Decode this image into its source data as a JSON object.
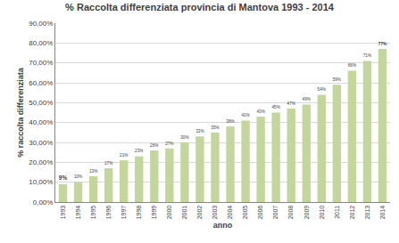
{
  "chart_data": {
    "type": "bar",
    "title": "% Raccolta differenziata provincia di Mantova 1993 - 2014",
    "x_label": "anno",
    "y_label": "% raccolta differenziata",
    "categories": [
      "1993",
      "1994",
      "1995",
      "1996",
      "1997",
      "1998",
      "1999",
      "2000",
      "2001",
      "2002",
      "2003",
      "2004",
      "2005",
      "2006",
      "2007",
      "2008",
      "2009",
      "2010",
      "2011",
      "2012",
      "2013",
      "2014"
    ],
    "values": [
      9,
      10,
      13,
      17,
      21,
      23,
      26,
      27,
      30,
      33,
      35,
      38,
      41,
      43,
      45,
      47,
      49,
      54,
      59,
      66,
      71,
      77
    ],
    "value_labels": [
      "9%",
      "10%",
      "13%",
      "17%",
      "21%",
      "23%",
      "26%",
      "27%",
      "30%",
      "33%",
      "35%",
      "38%",
      "41%",
      "43%",
      "45%",
      "47%",
      "49%",
      "54%",
      "59%",
      "66%",
      "71%",
      "77%"
    ],
    "color": "#c3d69b",
    "ylim": [
      0,
      90
    ],
    "yticks": [
      {
        "value": 0,
        "label": "0,00%"
      },
      {
        "value": 10,
        "label": "10,00%"
      },
      {
        "value": 20,
        "label": "20,00%"
      },
      {
        "value": 30,
        "label": "30,00%"
      },
      {
        "value": 40,
        "label": "40,00%"
      },
      {
        "value": 50,
        "label": "50,00%"
      },
      {
        "value": 60,
        "label": "60,00%"
      },
      {
        "value": 70,
        "label": "70,00%"
      },
      {
        "value": 80,
        "label": "80,00%"
      },
      {
        "value": 90,
        "label": "90,00%"
      }
    ],
    "grid": true,
    "data_labels": true
  }
}
